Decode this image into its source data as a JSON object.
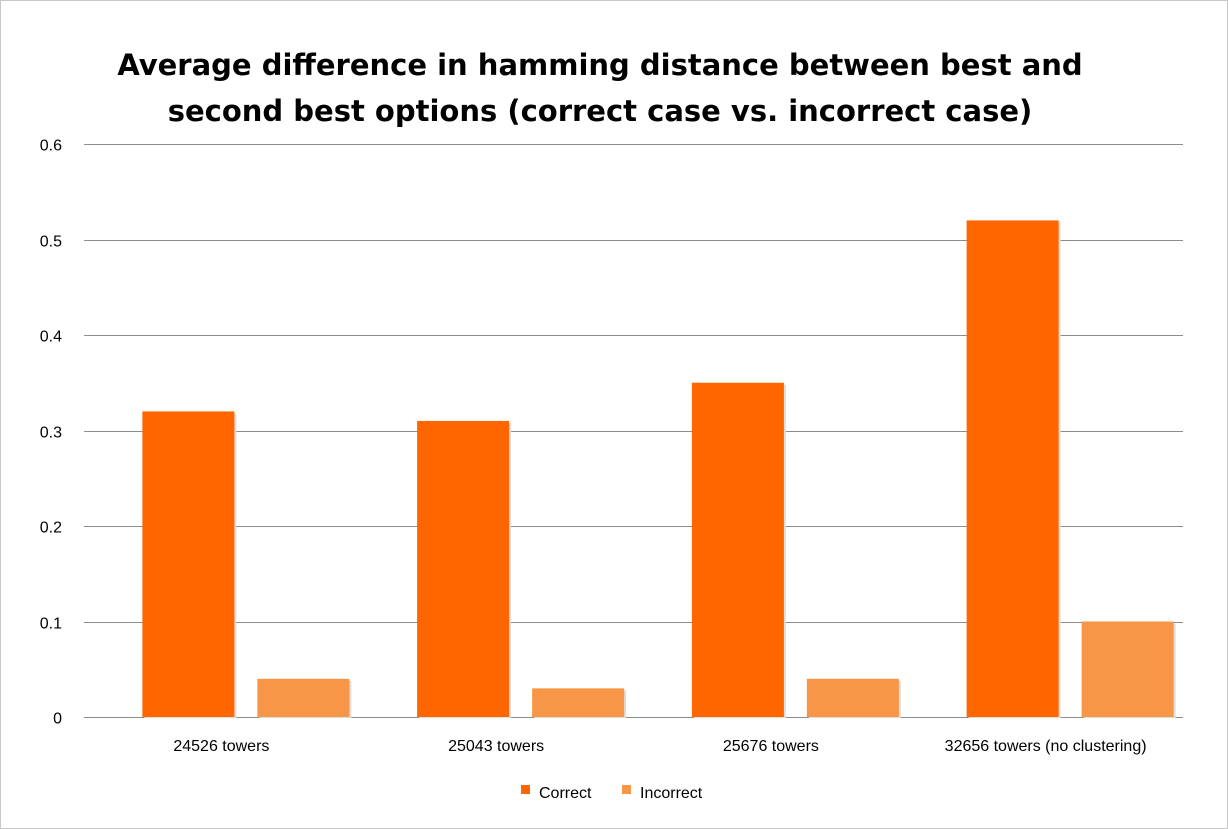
{
  "chart_data": {
    "type": "bar",
    "title_lines": [
      "Average difference in hamming distance between best and",
      "second best options (correct case vs. incorrect case)"
    ],
    "categories": [
      "24526 towers",
      "25043 towers",
      "25676 towers",
      "32656 towers (no clustering)"
    ],
    "series": [
      {
        "name": "Correct",
        "values": [
          0.32,
          0.31,
          0.35,
          0.52
        ],
        "color": "#ff6600"
      },
      {
        "name": "Incorrect",
        "values": [
          0.04,
          0.03,
          0.04,
          0.1
        ],
        "color": "#f79646"
      }
    ],
    "ylim": [
      0,
      0.6
    ],
    "yticks": [
      "0",
      "0.1",
      "0.2",
      "0.3",
      "0.4",
      "0.5",
      "0.6"
    ],
    "grid": true,
    "legend_position": "bottom"
  }
}
